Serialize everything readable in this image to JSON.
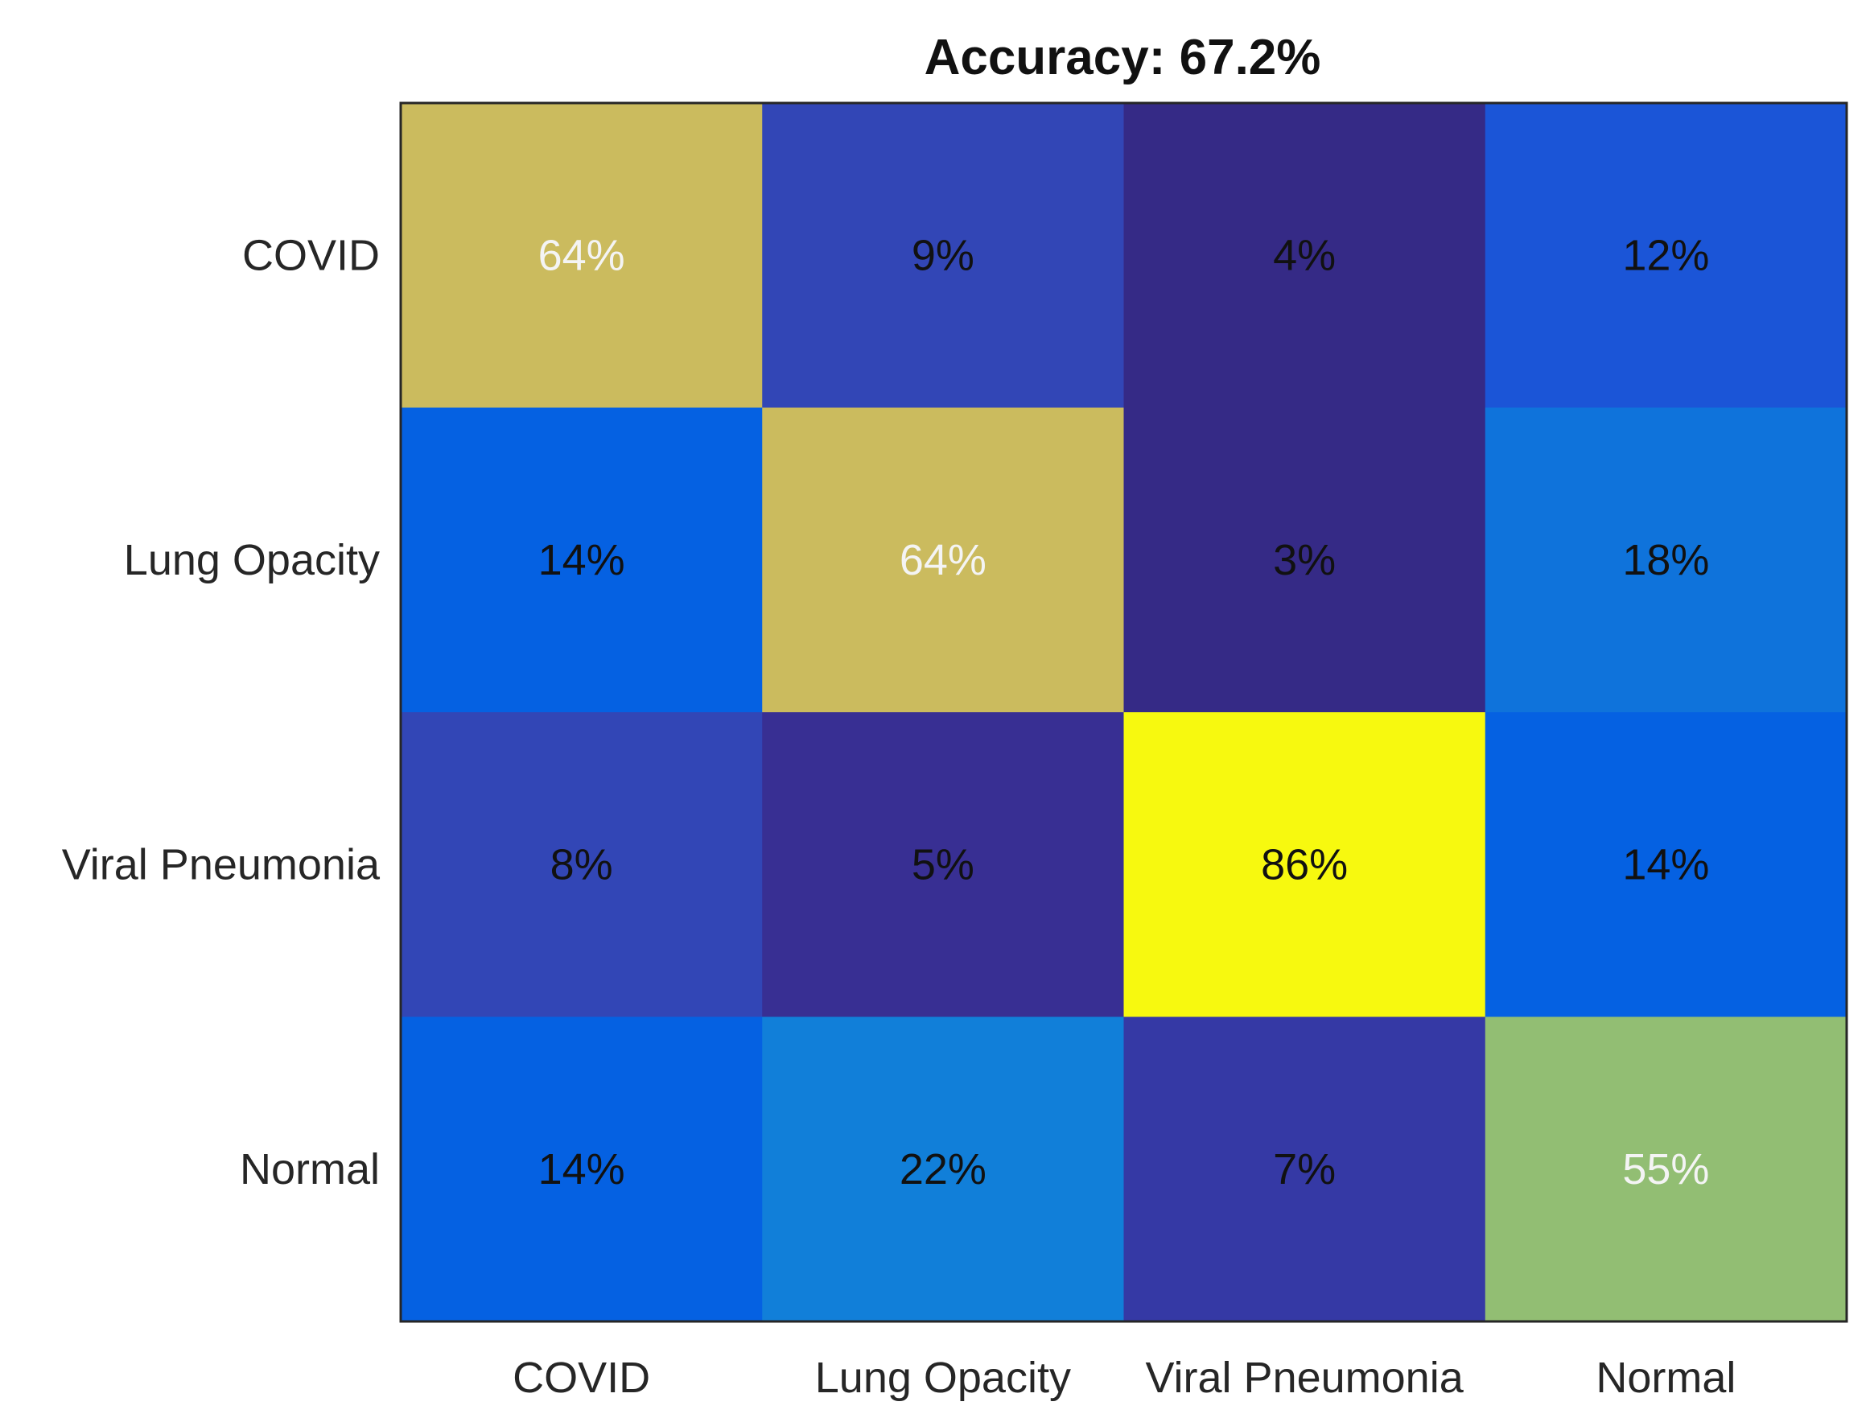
{
  "chart_data": {
    "type": "heatmap",
    "title": "Accuracy: 67.2%",
    "xlabel": "",
    "ylabel": "",
    "row_labels": [
      "COVID",
      "Lung Opacity",
      "Viral Pneumonia",
      "Normal"
    ],
    "col_labels": [
      "COVID",
      "Lung Opacity",
      "Viral Pneumonia",
      "Normal"
    ],
    "values": [
      [
        64,
        9,
        4,
        12
      ],
      [
        14,
        64,
        3,
        18
      ],
      [
        8,
        5,
        86,
        14
      ],
      [
        14,
        22,
        7,
        55
      ]
    ],
    "value_labels": [
      [
        "64%",
        "9%",
        "4%",
        "12%"
      ],
      [
        "14%",
        "64%",
        "3%",
        "18%"
      ],
      [
        "8%",
        "5%",
        "86%",
        "14%"
      ],
      [
        "14%",
        "22%",
        "7%",
        "55%"
      ]
    ],
    "cell_colors": [
      [
        "#cbbb5e",
        "#3246b6",
        "#352a86",
        "#1b55d7"
      ],
      [
        "#0561e2",
        "#cbbb5e",
        "#352a86",
        "#0f73db"
      ],
      [
        "#3246b6",
        "#382f93",
        "#f7f90f",
        "#0561e2"
      ],
      [
        "#0561e2",
        "#117fd9",
        "#3539a5",
        "#92be73"
      ]
    ],
    "label_tone": [
      [
        "light",
        "dark",
        "dark",
        "dark"
      ],
      [
        "dark",
        "light",
        "dark",
        "dark"
      ],
      [
        "dark",
        "dark",
        "dark",
        "dark"
      ],
      [
        "dark",
        "dark",
        "dark",
        "light"
      ]
    ],
    "colormap": "parula",
    "grid": false,
    "legend": "none"
  }
}
